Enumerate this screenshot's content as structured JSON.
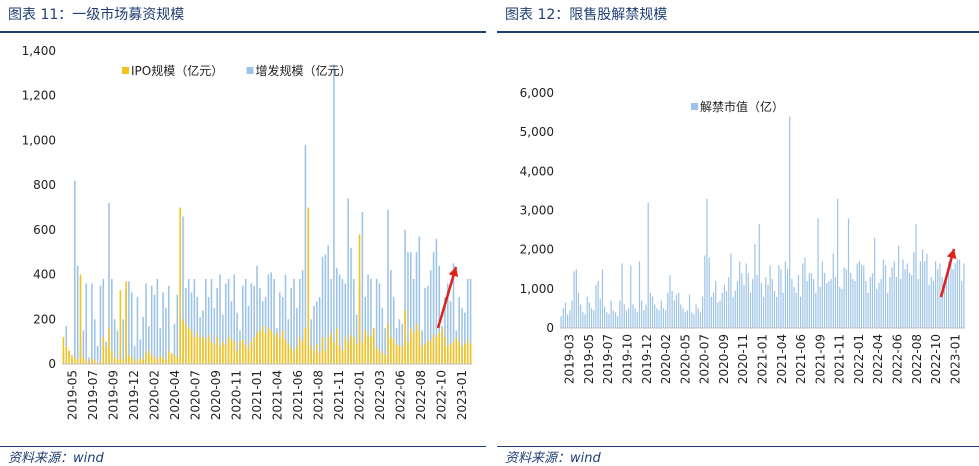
{
  "figures": [
    {
      "id": "left",
      "title": "图表 11：一级市场募资规模",
      "source": "资料来源：wind"
    },
    {
      "id": "right",
      "title": "图表 12：限售股解禁规模",
      "source": "资料来源：wind"
    }
  ],
  "colors": {
    "title": "#1f3e74",
    "ipo": "#f5c21b",
    "additional": "#9dc3e6",
    "unlock": "#9dc3e6",
    "arrow": "#e0201b",
    "axis": "#bfbfbf"
  },
  "chart_data": [
    {
      "type": "bar",
      "stacked": false,
      "title": "",
      "xlabel": "",
      "ylabel": "",
      "ylim": [
        0,
        1400
      ],
      "yticks": [
        "0",
        "200",
        "400",
        "600",
        "800",
        "1,000",
        "1,200",
        "1,400"
      ],
      "grid": false,
      "legend_position": "top",
      "x_tick_labels": [
        "2019-05",
        "2019-07",
        "2019-09",
        "2019-12",
        "2020-02",
        "2020-04",
        "2020-07",
        "2020-09",
        "2020-11",
        "2021-01",
        "2021-04",
        "2021-06",
        "2021-08",
        "2021-11",
        "2022-01",
        "2022-03",
        "2022-06",
        "2022-08",
        "2022-10",
        "2023-01"
      ],
      "series": [
        {
          "name": "IPO规模（亿元）",
          "color": "#f5c21b",
          "values": [
            120,
            80,
            60,
            40,
            30,
            20,
            400,
            30,
            20,
            10,
            25,
            20,
            5,
            10,
            120,
            80,
            160,
            60,
            30,
            20,
            330,
            20,
            370,
            40,
            30,
            20,
            10,
            30,
            20,
            50,
            60,
            40,
            30,
            20,
            40,
            30,
            20,
            60,
            50,
            40,
            30,
            700,
            200,
            180,
            160,
            150,
            120,
            140,
            120,
            120,
            110,
            130,
            100,
            90,
            120,
            80,
            100,
            90,
            120,
            110,
            100,
            60,
            100,
            110,
            90,
            70,
            100,
            120,
            140,
            150,
            170,
            140,
            160,
            150,
            130,
            140,
            120,
            150,
            110,
            90,
            70,
            60,
            80,
            120,
            100,
            160,
            700,
            80,
            60,
            90,
            50,
            120,
            60,
            120,
            140,
            100,
            160,
            80,
            60,
            120,
            100,
            130,
            120,
            90,
            580,
            100,
            150,
            130,
            120,
            160,
            70,
            60,
            50,
            40,
            180,
            120,
            110,
            90,
            80,
            80,
            240,
            100,
            160,
            140,
            180,
            150,
            80,
            90,
            110,
            100,
            130,
            120,
            140,
            160,
            120,
            80,
            90,
            100,
            120,
            100,
            80,
            90,
            110,
            90
          ]
        },
        {
          "name": "增发规模（亿元）",
          "color": "#9dc3e6",
          "values": [
            60,
            170,
            60,
            20,
            820,
            440,
            80,
            150,
            360,
            30,
            360,
            200,
            80,
            350,
            380,
            100,
            720,
            380,
            200,
            150,
            60,
            200,
            340,
            370,
            320,
            80,
            300,
            110,
            210,
            360,
            170,
            350,
            310,
            380,
            160,
            320,
            250,
            350,
            40,
            180,
            310,
            220,
            660,
            340,
            380,
            320,
            380,
            300,
            210,
            240,
            380,
            300,
            380,
            250,
            340,
            400,
            220,
            360,
            380,
            280,
            400,
            230,
            150,
            350,
            380,
            260,
            360,
            350,
            440,
            340,
            280,
            300,
            400,
            410,
            380,
            160,
            320,
            300,
            400,
            200,
            340,
            380,
            250,
            380,
            420,
            980,
            320,
            200,
            260,
            280,
            300,
            480,
            490,
            530,
            380,
            1340,
            430,
            400,
            380,
            360,
            740,
            520,
            380,
            220,
            360,
            680,
            300,
            400,
            380,
            160,
            380,
            360,
            250,
            160,
            690,
            420,
            300,
            160,
            200,
            180,
            600,
            500,
            500,
            380,
            500,
            570,
            150,
            340,
            350,
            420,
            500,
            560,
            440,
            170,
            300,
            360,
            280,
            450,
            150,
            300,
            250,
            230,
            380,
            380
          ]
        }
      ]
    },
    {
      "type": "bar",
      "title": "",
      "xlabel": "",
      "ylabel": "",
      "ylim": [
        0,
        6000
      ],
      "yticks": [
        "0",
        "1,000",
        "2,000",
        "3,000",
        "4,000",
        "5,000",
        "6,000"
      ],
      "grid": false,
      "legend_position": "top",
      "x_tick_labels": [
        "2019-03",
        "2019-05",
        "2019-07",
        "2019-10",
        "2019-12",
        "2020-02",
        "2020-05",
        "2020-07",
        "2020-09",
        "2020-11",
        "2021-01",
        "2021-04",
        "2021-06",
        "2021-09",
        "2021-11",
        "2022-01",
        "2022-04",
        "2022-06",
        "2022-08",
        "2022-10",
        "2023-01"
      ],
      "series": [
        {
          "name": "解禁市值（亿）",
          "color": "#9dc3e6",
          "values": [
            300,
            500,
            650,
            350,
            450,
            700,
            1450,
            1500,
            900,
            600,
            400,
            350,
            800,
            650,
            500,
            450,
            1100,
            1200,
            750,
            1500,
            550,
            400,
            350,
            700,
            450,
            400,
            300,
            700,
            1650,
            600,
            450,
            500,
            1600,
            600,
            500,
            400,
            1700,
            700,
            450,
            600,
            3200,
            900,
            800,
            600,
            500,
            450,
            700,
            500,
            450,
            900,
            1350,
            950,
            700,
            850,
            900,
            600,
            500,
            400,
            450,
            850,
            400,
            350,
            600,
            500,
            400,
            800,
            1850,
            3300,
            1800,
            800,
            900,
            1200,
            650,
            700,
            900,
            1100,
            950,
            1300,
            1900,
            800,
            950,
            1200,
            1700,
            1400,
            1100,
            1650,
            1400,
            900,
            1250,
            2150,
            1350,
            2650,
            1150,
            800,
            1300,
            1100,
            1600,
            1250,
            950,
            800,
            1600,
            1500,
            900,
            1700,
            1500,
            5400,
            1250,
            1050,
            900,
            1350,
            800,
            1650,
            1800,
            1200,
            1400,
            1400,
            1250,
            900,
            2800,
            1050,
            1700,
            1400,
            1150,
            1200,
            1250,
            1900,
            1300,
            3300,
            1050,
            1000,
            1550,
            1500,
            2800,
            1400,
            1250,
            1200,
            1650,
            1700,
            1600,
            1600,
            1200,
            900,
            1300,
            1400,
            2300,
            1000,
            1150,
            1250,
            1750,
            1600,
            900,
            1300,
            1550,
            1700,
            1300,
            2100,
            1250,
            1750,
            1500,
            1650,
            1400,
            1350,
            1950,
            2650,
            1250,
            1700,
            2000,
            1700,
            1900,
            1100,
            1300,
            1200,
            1700,
            1500,
            1650,
            1300,
            1050,
            1200,
            1700,
            1800,
            1500,
            1650,
            1750,
            1750,
            1200,
            1650
          ]
        }
      ]
    }
  ]
}
